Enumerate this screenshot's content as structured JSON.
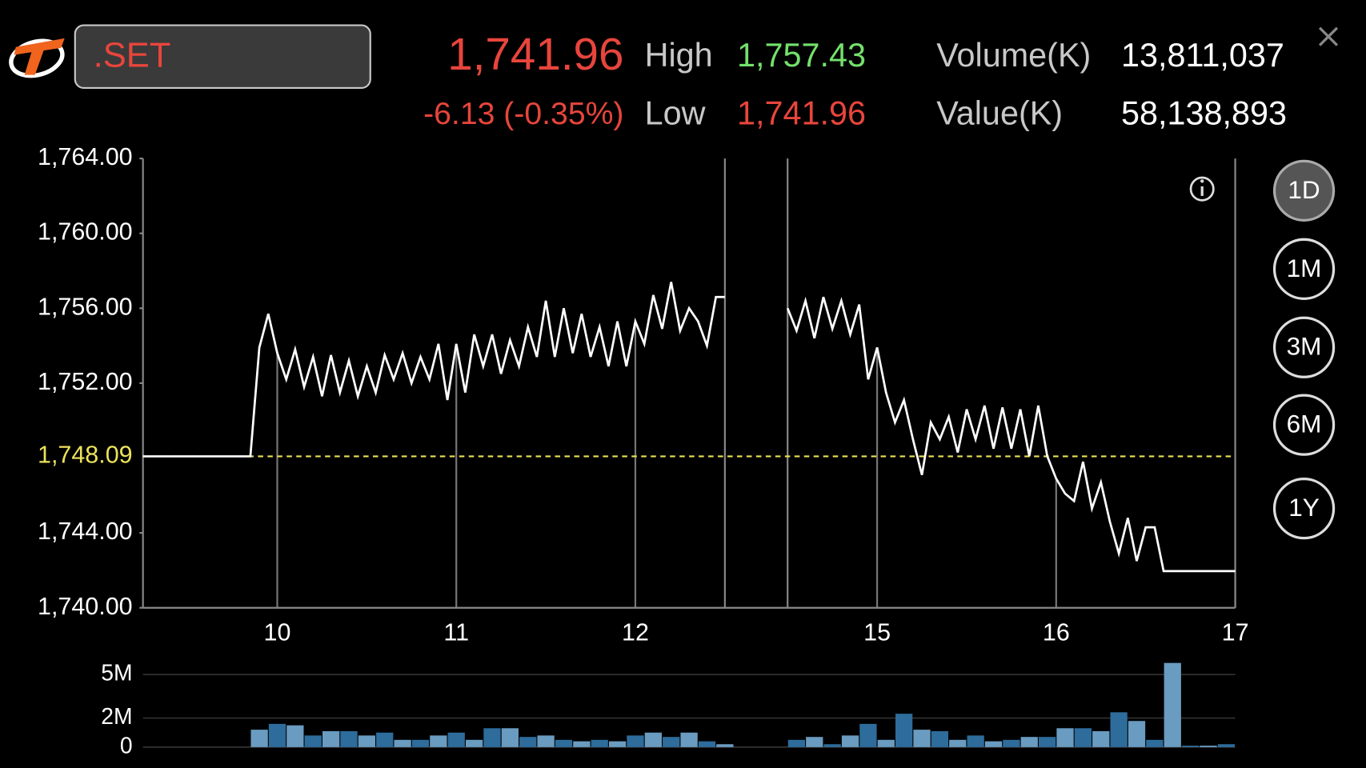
{
  "header": {
    "symbol": ".SET",
    "last": "1,741.96",
    "change": "-6.13 (-0.35%)",
    "high_label": "High",
    "high": "1,757.43",
    "low_label": "Low",
    "low": "1,741.96",
    "volume_label": "Volume(K)",
    "volume": "13,811,037",
    "value_label": "Value(K)",
    "value": "58,138,893"
  },
  "ranges": {
    "items": [
      "1D",
      "1M",
      "3M",
      "6M",
      "1Y"
    ],
    "selected": 0
  },
  "chart_data": {
    "type": "line",
    "xlim": [
      9.25,
      17
    ],
    "xticks": [
      10,
      11,
      12,
      15,
      16,
      17
    ],
    "session_breaks": [
      12.5,
      14.5
    ],
    "ylim": [
      1740,
      1764
    ],
    "yticks": [
      {
        "value": 1740,
        "label": "1,740.00"
      },
      {
        "value": 1744,
        "label": "1,744.00"
      },
      {
        "value": 1752,
        "label": "1,752.00"
      },
      {
        "value": 1756,
        "label": "1,756.00"
      },
      {
        "value": 1760,
        "label": "1,760.00"
      },
      {
        "value": 1764,
        "label": "1,764.00"
      }
    ],
    "reference": {
      "value": 1748.09,
      "label": "1,748.09",
      "color": "#ece25a"
    },
    "series": [
      {
        "color": "#ffffff",
        "x": [
          9.25,
          9.85,
          9.9,
          9.95,
          10,
          10.05,
          10.1,
          10.15,
          10.2,
          10.25,
          10.3,
          10.35,
          10.4,
          10.45,
          10.5,
          10.55,
          10.6,
          10.65,
          10.7,
          10.75,
          10.8,
          10.85,
          10.9,
          10.95,
          11,
          11.05,
          11.1,
          11.15,
          11.2,
          11.25,
          11.3,
          11.35,
          11.4,
          11.45,
          11.5,
          11.55,
          11.6,
          11.65,
          11.7,
          11.75,
          11.8,
          11.85,
          11.9,
          11.95,
          12,
          12.05,
          12.1,
          12.15,
          12.2,
          12.25,
          12.3,
          12.35,
          12.4,
          12.45,
          12.5
        ],
        "values": [
          1748.09,
          1748.09,
          1753.9,
          1755.7,
          1753.6,
          1752.2,
          1753.8,
          1751.8,
          1753.4,
          1751.3,
          1753.5,
          1751.5,
          1753.2,
          1751.3,
          1752.9,
          1751.5,
          1753.5,
          1752.2,
          1753.6,
          1752.0,
          1753.4,
          1752.2,
          1754.1,
          1751.1,
          1754.1,
          1751.5,
          1754.6,
          1752.9,
          1754.6,
          1752.5,
          1754.3,
          1752.9,
          1755.0,
          1753.4,
          1756.4,
          1753.4,
          1756.0,
          1753.6,
          1755.7,
          1753.4,
          1755.0,
          1752.9,
          1755.3,
          1752.9,
          1755.3,
          1754.1,
          1756.7,
          1754.9,
          1757.4,
          1754.8,
          1756.0,
          1755.3,
          1754.0,
          1756.6,
          1756.6
        ]
      },
      {
        "color": "#ffffff",
        "x": [
          14.5,
          14.55,
          14.6,
          14.65,
          14.7,
          14.75,
          14.8,
          14.85,
          14.9,
          14.95,
          15,
          15.05,
          15.1,
          15.15,
          15.2,
          15.25,
          15.3,
          15.35,
          15.4,
          15.45,
          15.5,
          15.55,
          15.6,
          15.65,
          15.7,
          15.75,
          15.8,
          15.85,
          15.9,
          15.95,
          16,
          16.05,
          16.1,
          16.15,
          16.2,
          16.25,
          16.3,
          16.35,
          16.4,
          16.45,
          16.5,
          16.55,
          16.6,
          17
        ],
        "values": [
          1756.0,
          1754.8,
          1756.4,
          1754.4,
          1756.6,
          1754.9,
          1756.4,
          1754.6,
          1756.2,
          1752.2,
          1753.9,
          1751.5,
          1749.9,
          1751.1,
          1749.0,
          1747.1,
          1749.9,
          1749.0,
          1750.2,
          1748.3,
          1750.6,
          1749.0,
          1750.8,
          1748.5,
          1750.7,
          1748.5,
          1750.6,
          1748.1,
          1750.8,
          1748.1,
          1746.9,
          1746.1,
          1745.7,
          1747.8,
          1745.3,
          1746.7,
          1744.6,
          1742.9,
          1744.8,
          1742.5,
          1744.3,
          1744.3,
          1741.96,
          1741.96
        ]
      }
    ],
    "volume": {
      "ylim": [
        0,
        6000000
      ],
      "yticks": [
        0,
        {
          "value": 2000000,
          "label": "2M"
        },
        {
          "value": 5000000,
          "label": "5M"
        }
      ],
      "colors": [
        "#6a9bc0",
        "#2d6c9b"
      ],
      "x": [
        9.9,
        10,
        10.1,
        10.2,
        10.3,
        10.4,
        10.5,
        10.6,
        10.7,
        10.8,
        10.9,
        11,
        11.1,
        11.2,
        11.3,
        11.4,
        11.5,
        11.6,
        11.7,
        11.8,
        11.9,
        12,
        12.1,
        12.2,
        12.3,
        12.4,
        12.5,
        14.55,
        14.65,
        14.75,
        14.85,
        14.95,
        15.05,
        15.15,
        15.25,
        15.35,
        15.45,
        15.55,
        15.65,
        15.75,
        15.85,
        15.95,
        16.05,
        16.15,
        16.25,
        16.35,
        16.45,
        16.55,
        16.65,
        16.75,
        16.85,
        16.95
      ],
      "values": [
        1200000,
        1600000,
        1500000,
        800000,
        1100000,
        1100000,
        800000,
        1000000,
        500000,
        500000,
        800000,
        1000000,
        500000,
        1300000,
        1300000,
        700000,
        800000,
        500000,
        400000,
        500000,
        400000,
        800000,
        1000000,
        700000,
        1000000,
        400000,
        200000,
        500000,
        700000,
        200000,
        800000,
        1600000,
        500000,
        2300000,
        1200000,
        1100000,
        500000,
        800000,
        400000,
        500000,
        700000,
        700000,
        1300000,
        1300000,
        1100000,
        2400000,
        1800000,
        500000,
        5800000,
        100000,
        100000,
        200000
      ]
    }
  }
}
